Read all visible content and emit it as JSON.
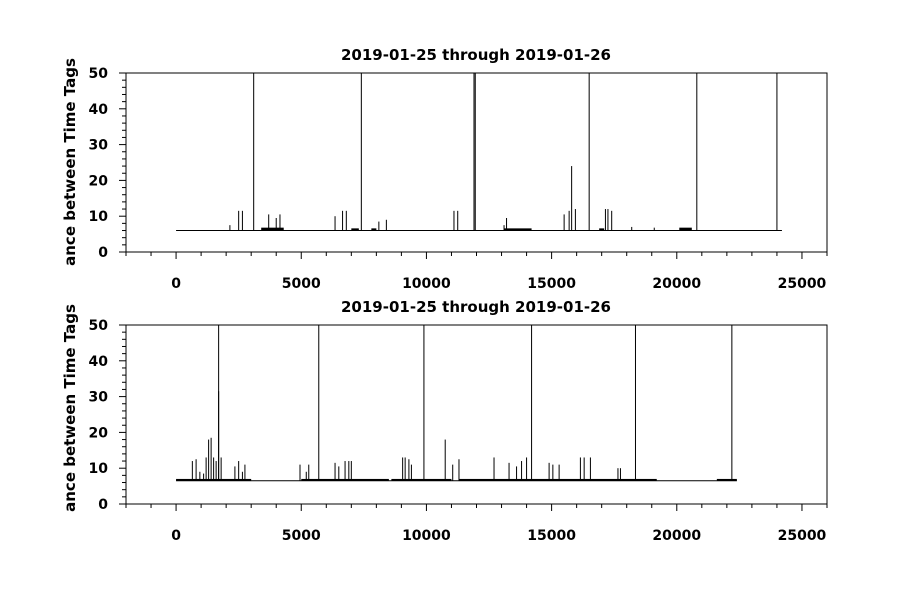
{
  "chart_data": [
    {
      "type": "line",
      "title": "2019-01-25 through 2019-01-26",
      "ylabel": "ance between Time Tags",
      "xlim": [
        -2000,
        26000
      ],
      "ylim": [
        0,
        50
      ],
      "xticks": [
        0,
        5000,
        10000,
        15000,
        20000,
        25000
      ],
      "yticks": [
        0,
        10,
        20,
        30,
        40,
        50
      ],
      "grid": false,
      "x_end": 24200,
      "baseline": 6.0,
      "segments": [
        {
          "x0": 3400,
          "x1": 4300,
          "y": 6.8
        },
        {
          "x0": 7000,
          "x1": 7300,
          "y": 6.6
        },
        {
          "x0": 7800,
          "x1": 8000,
          "y": 6.6
        },
        {
          "x0": 13100,
          "x1": 14200,
          "y": 6.6
        },
        {
          "x0": 16900,
          "x1": 17100,
          "y": 6.6
        },
        {
          "x0": 20100,
          "x1": 20600,
          "y": 6.8
        }
      ],
      "spikes": [
        {
          "x": 2150,
          "y": 7.5
        },
        {
          "x": 2500,
          "y": 11.5
        },
        {
          "x": 2650,
          "y": 11.5
        },
        {
          "x": 3700,
          "y": 10.5
        },
        {
          "x": 4000,
          "y": 9.5
        },
        {
          "x": 4150,
          "y": 10.5
        },
        {
          "x": 6350,
          "y": 10.0
        },
        {
          "x": 6650,
          "y": 11.5
        },
        {
          "x": 6800,
          "y": 11.5
        },
        {
          "x": 8100,
          "y": 8.5
        },
        {
          "x": 8400,
          "y": 9.0
        },
        {
          "x": 11100,
          "y": 11.5
        },
        {
          "x": 11250,
          "y": 11.5
        },
        {
          "x": 13100,
          "y": 7.5
        },
        {
          "x": 13200,
          "y": 9.5
        },
        {
          "x": 15500,
          "y": 10.5
        },
        {
          "x": 15700,
          "y": 11.5
        },
        {
          "x": 15800,
          "y": 24.0
        },
        {
          "x": 15950,
          "y": 12.0
        },
        {
          "x": 17150,
          "y": 12.0
        },
        {
          "x": 17250,
          "y": 12.0
        },
        {
          "x": 17400,
          "y": 11.5
        },
        {
          "x": 18200,
          "y": 7.0
        },
        {
          "x": 19100,
          "y": 6.8
        }
      ],
      "gaps": [
        3100,
        7400,
        11900,
        11950,
        16500,
        20800,
        24000
      ]
    },
    {
      "type": "line",
      "title": "2019-01-25 through 2019-01-26",
      "ylabel": "ance between Time Tags",
      "xlim": [
        -2000,
        26000
      ],
      "ylim": [
        0,
        50
      ],
      "xticks": [
        0,
        5000,
        10000,
        15000,
        20000,
        25000
      ],
      "yticks": [
        0,
        10,
        20,
        30,
        40,
        50
      ],
      "grid": false,
      "x_end": 22400,
      "baseline": 6.5,
      "segments": [
        {
          "x0": 0,
          "x1": 3000,
          "y": 7.0
        },
        {
          "x0": 5000,
          "x1": 8500,
          "y": 7.0
        },
        {
          "x0": 8600,
          "x1": 11000,
          "y": 7.0
        },
        {
          "x0": 11300,
          "x1": 19200,
          "y": 7.0
        },
        {
          "x0": 21600,
          "x1": 22400,
          "y": 7.0
        }
      ],
      "spikes": [
        {
          "x": 650,
          "y": 12.0
        },
        {
          "x": 800,
          "y": 12.5
        },
        {
          "x": 950,
          "y": 9.0
        },
        {
          "x": 1100,
          "y": 8.5
        },
        {
          "x": 1200,
          "y": 13.0
        },
        {
          "x": 1300,
          "y": 18.0
        },
        {
          "x": 1400,
          "y": 18.5
        },
        {
          "x": 1500,
          "y": 13.0
        },
        {
          "x": 1600,
          "y": 12.0
        },
        {
          "x": 1700,
          "y": 31.5
        },
        {
          "x": 1800,
          "y": 13.0
        },
        {
          "x": 2350,
          "y": 10.5
        },
        {
          "x": 2500,
          "y": 12.0
        },
        {
          "x": 2650,
          "y": 9.0
        },
        {
          "x": 2750,
          "y": 11.0
        },
        {
          "x": 4950,
          "y": 11.0
        },
        {
          "x": 5200,
          "y": 9.0
        },
        {
          "x": 5300,
          "y": 11.0
        },
        {
          "x": 6350,
          "y": 11.5
        },
        {
          "x": 6500,
          "y": 10.5
        },
        {
          "x": 6750,
          "y": 12.0
        },
        {
          "x": 6900,
          "y": 12.0
        },
        {
          "x": 7000,
          "y": 12.0
        },
        {
          "x": 9050,
          "y": 13.0
        },
        {
          "x": 9150,
          "y": 13.0
        },
        {
          "x": 9300,
          "y": 12.5
        },
        {
          "x": 9400,
          "y": 11.0
        },
        {
          "x": 10750,
          "y": 18.0
        },
        {
          "x": 11050,
          "y": 11.0
        },
        {
          "x": 11300,
          "y": 12.5
        },
        {
          "x": 12700,
          "y": 13.0
        },
        {
          "x": 13300,
          "y": 11.5
        },
        {
          "x": 13600,
          "y": 10.5
        },
        {
          "x": 13800,
          "y": 12.0
        },
        {
          "x": 14000,
          "y": 13.0
        },
        {
          "x": 14900,
          "y": 11.5
        },
        {
          "x": 15050,
          "y": 11.0
        },
        {
          "x": 15300,
          "y": 11.0
        },
        {
          "x": 16150,
          "y": 13.0
        },
        {
          "x": 16300,
          "y": 13.0
        },
        {
          "x": 16550,
          "y": 13.0
        },
        {
          "x": 17650,
          "y": 10.0
        },
        {
          "x": 17750,
          "y": 10.0
        }
      ],
      "gaps": [
        1700,
        5700,
        9900,
        14200,
        18350,
        22200
      ]
    }
  ]
}
